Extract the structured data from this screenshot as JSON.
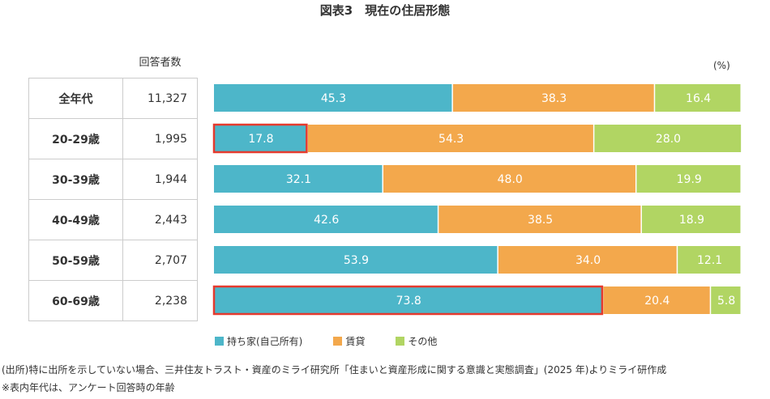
{
  "title": "図表3　現在の住居形態",
  "count_header": "回答者数",
  "unit": "(%)",
  "colors": {
    "owned": "#4db6c9",
    "rent": "#f3a84c",
    "other": "#b1d563",
    "highlight": "#e53a2e"
  },
  "chart_data": {
    "type": "bar",
    "orientation": "horizontal-stacked-100",
    "categories": [
      "全年代",
      "20-29歳",
      "30-39歳",
      "40-49歳",
      "50-59歳",
      "60-69歳"
    ],
    "respondents": [
      "11,327",
      "1,995",
      "1,944",
      "2,443",
      "2,707",
      "2,238"
    ],
    "series": [
      {
        "name": "持ち家(自己所有)",
        "values": [
          45.3,
          17.8,
          32.1,
          42.6,
          53.9,
          73.8
        ]
      },
      {
        "name": "賃貸",
        "values": [
          38.3,
          54.3,
          48.0,
          38.5,
          34.0,
          20.4
        ]
      },
      {
        "name": "その他",
        "values": [
          16.4,
          28.0,
          19.9,
          18.9,
          12.1,
          5.8
        ]
      }
    ],
    "highlighted": [
      {
        "category": "20-29歳",
        "series": "持ち家(自己所有)"
      },
      {
        "category": "60-69歳",
        "series": "持ち家(自己所有)"
      }
    ],
    "xlim": [
      0,
      100
    ],
    "legend": "bottom"
  },
  "notes": [
    "(出所)特に出所を示していない場合、三井住友トラスト・資産のミライ研究所「住まいと資産形成に関する意識と実態調査」(2025 年)よりミライ研作成",
    "※表内年代は、アンケート回答時の年齢"
  ]
}
